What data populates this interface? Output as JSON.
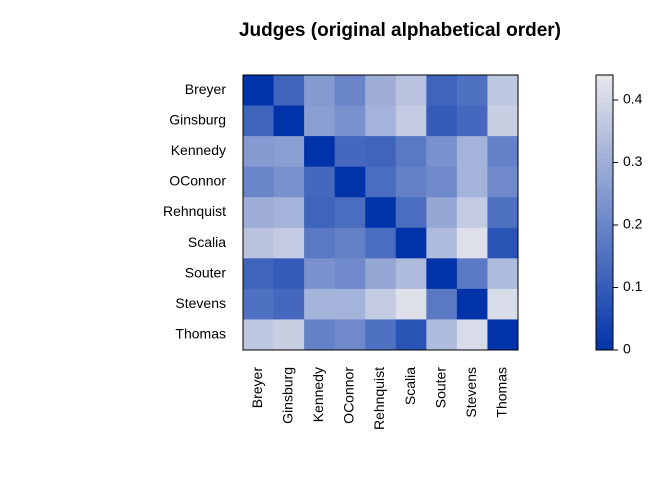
{
  "chart_data": {
    "type": "heatmap",
    "title": "Judges (original alphabetical order)",
    "categories": [
      "Breyer",
      "Ginsburg",
      "Kennedy",
      "OConnor",
      "Rehnquist",
      "Scalia",
      "Souter",
      "Stevens",
      "Thomas"
    ],
    "values": [
      [
        0,
        0.12,
        0.25,
        0.2,
        0.3,
        0.35,
        0.12,
        0.15,
        0.36
      ],
      [
        0.12,
        0,
        0.26,
        0.23,
        0.31,
        0.37,
        0.1,
        0.13,
        0.38
      ],
      [
        0.25,
        0.26,
        0,
        0.13,
        0.12,
        0.17,
        0.23,
        0.31,
        0.19
      ],
      [
        0.2,
        0.23,
        0.13,
        0,
        0.14,
        0.19,
        0.21,
        0.31,
        0.21
      ],
      [
        0.3,
        0.31,
        0.12,
        0.14,
        0,
        0.14,
        0.28,
        0.37,
        0.15
      ],
      [
        0.35,
        0.37,
        0.17,
        0.19,
        0.14,
        0,
        0.33,
        0.42,
        0.08
      ],
      [
        0.12,
        0.1,
        0.23,
        0.21,
        0.28,
        0.33,
        0,
        0.17,
        0.33
      ],
      [
        0.15,
        0.13,
        0.31,
        0.31,
        0.37,
        0.42,
        0.17,
        0,
        0.41
      ],
      [
        0.36,
        0.38,
        0.19,
        0.21,
        0.15,
        0.08,
        0.33,
        0.41,
        0
      ]
    ],
    "zlim": [
      0,
      0.44
    ],
    "zticks": [
      0,
      0.1,
      0.2,
      0.3,
      0.4
    ],
    "colors": [
      "#0033aa",
      "#e8e8ec"
    ]
  }
}
